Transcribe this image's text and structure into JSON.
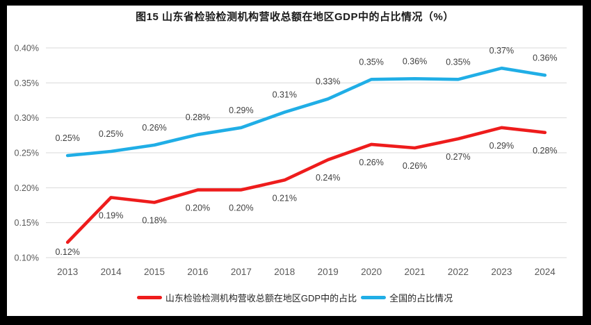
{
  "title": "图15  山东省检验检测机构营收总额在地区GDP中的占比情况（%）",
  "colors": {
    "shandong": "#ee1c1c",
    "national": "#20aee6",
    "gridline": "#d9d9d9",
    "axis_text": "#595959",
    "label_text": "#3f3f3f",
    "frame": "#000000",
    "background": "#ffffff"
  },
  "chart_data": {
    "type": "line",
    "title": "图15  山东省检验检测机构营收总额在地区GDP中的占比情况（%）",
    "categories": [
      "2013",
      "2014",
      "2015",
      "2016",
      "2017",
      "2018",
      "2019",
      "2020",
      "2021",
      "2022",
      "2023",
      "2024"
    ],
    "series": [
      {
        "name": "山东检验检测机构营收总额在地区GDP中的占比",
        "color_key": "shandong",
        "values": [
          0.122,
          0.186,
          0.179,
          0.197,
          0.197,
          0.211,
          0.24,
          0.262,
          0.257,
          0.27,
          0.286,
          0.279
        ],
        "labels": [
          "0.12%",
          "0.19%",
          "0.18%",
          "0.20%",
          "0.20%",
          "0.21%",
          "0.24%",
          "0.26%",
          "0.26%",
          "0.27%",
          "0.29%",
          "0.28%"
        ],
        "label_position": "below"
      },
      {
        "name": "全国的占比情况",
        "color_key": "national",
        "values": [
          0.246,
          0.252,
          0.261,
          0.276,
          0.286,
          0.308,
          0.327,
          0.355,
          0.356,
          0.355,
          0.371,
          0.361
        ],
        "labels": [
          "0.25%",
          "0.25%",
          "0.26%",
          "0.28%",
          "0.29%",
          "0.31%",
          "0.33%",
          "0.35%",
          "0.36%",
          "0.35%",
          "0.37%",
          "0.36%"
        ],
        "label_position": "above"
      }
    ],
    "xlabel": "",
    "ylabel": "",
    "ylim": [
      0.1,
      0.4
    ],
    "ytick_step": 0.05,
    "ytick_labels": [
      "0.10%",
      "0.15%",
      "0.20%",
      "0.25%",
      "0.30%",
      "0.35%",
      "0.40%"
    ],
    "grid": "horizontal",
    "legend_position": "bottom",
    "markers": false
  },
  "legend": {
    "items": [
      {
        "label": "山东检验检测机构营收总额在地区GDP中的占比",
        "color_key": "shandong"
      },
      {
        "label": "全国的占比情况",
        "color_key": "national"
      }
    ]
  }
}
